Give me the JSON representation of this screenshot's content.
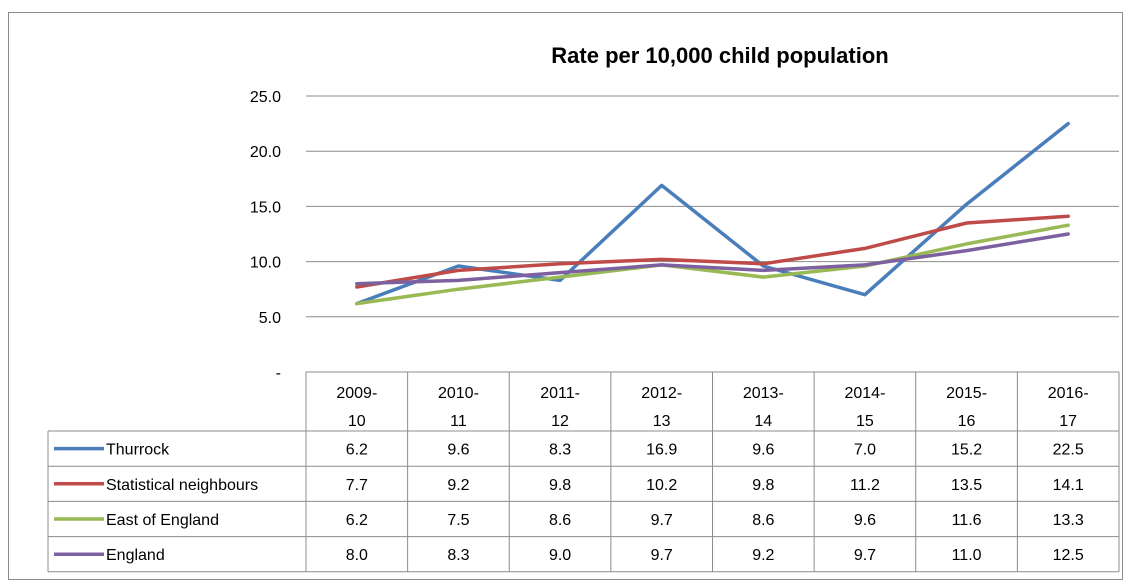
{
  "chart_data": {
    "type": "line",
    "title": "Rate per 10,000 child population",
    "xlabel": "",
    "ylabel": "",
    "ylim": [
      0,
      25
    ],
    "yticks": [
      "-",
      "5.0",
      "10.0",
      "15.0",
      "20.0",
      "25.0"
    ],
    "grid": true,
    "legend": "data-table",
    "categories": [
      [
        "2009-",
        "10"
      ],
      [
        "2010-",
        "11"
      ],
      [
        "2011-",
        "12"
      ],
      [
        "2012-",
        "13"
      ],
      [
        "2013-",
        "14"
      ],
      [
        "2014-",
        "15"
      ],
      [
        "2015-",
        "16"
      ],
      [
        "2016-",
        "17"
      ]
    ],
    "series": [
      {
        "name": "Thurrock",
        "color": "#4a7ebb",
        "values": [
          6.2,
          9.6,
          8.3,
          16.9,
          9.6,
          7.0,
          15.2,
          22.5
        ],
        "labels": [
          "6.2",
          "9.6",
          "8.3",
          "16.9",
          "9.6",
          "7.0",
          "15.2",
          "22.5"
        ]
      },
      {
        "name": "Statistical neighbours",
        "color": "#be4b48",
        "values": [
          7.7,
          9.2,
          9.8,
          10.2,
          9.8,
          11.2,
          13.5,
          14.1
        ],
        "labels": [
          "7.7",
          "9.2",
          "9.8",
          "10.2",
          "9.8",
          "11.2",
          "13.5",
          "14.1"
        ]
      },
      {
        "name": "East of England",
        "color": "#98b954",
        "values": [
          6.2,
          7.5,
          8.6,
          9.7,
          8.6,
          9.6,
          11.6,
          13.3
        ],
        "labels": [
          "6.2",
          "7.5",
          "8.6",
          "9.7",
          "8.6",
          "9.6",
          "11.6",
          "13.3"
        ]
      },
      {
        "name": "England",
        "color": "#7d60a0",
        "values": [
          8.0,
          8.3,
          9.0,
          9.7,
          9.2,
          9.7,
          11.0,
          12.5
        ],
        "labels": [
          "8.0",
          "8.3",
          "9.0",
          "9.7",
          "9.2",
          "9.7",
          "11.0",
          "12.5"
        ]
      }
    ]
  }
}
